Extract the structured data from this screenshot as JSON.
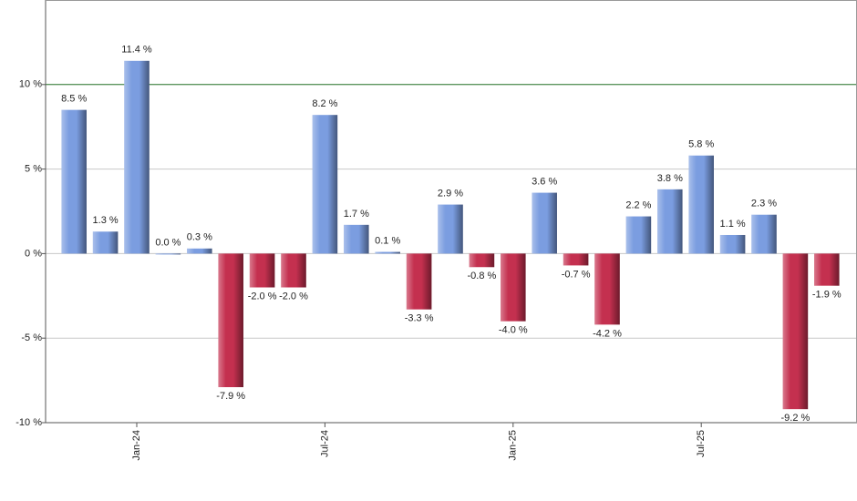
{
  "chart_data": {
    "type": "bar",
    "categories": [
      null,
      null,
      "Jan-24",
      null,
      null,
      null,
      null,
      null,
      "Jul-24",
      null,
      null,
      null,
      null,
      null,
      "Jan-25",
      null,
      null,
      null,
      null,
      null,
      "Jul-25",
      null,
      null,
      null,
      null
    ],
    "values": [
      8.5,
      1.3,
      11.4,
      0.0,
      0.3,
      -7.9,
      -2.0,
      -2.0,
      8.2,
      1.7,
      0.1,
      -3.3,
      2.9,
      -0.8,
      -4.0,
      3.6,
      -0.7,
      -4.2,
      2.2,
      3.8,
      5.8,
      1.1,
      2.3,
      -9.2,
      -1.9
    ],
    "value_labels": [
      "8.5 %",
      "1.3 %",
      "11.4 %",
      "0.0 %",
      "0.3 %",
      "-7.9 %",
      "-2.0 %",
      "-2.0 %",
      "8.2 %",
      "1.7 %",
      "0.1 %",
      "-3.3 %",
      "2.9 %",
      "-0.8 %",
      "-4.0 %",
      "3.6 %",
      "-0.7 %",
      "-4.2 %",
      "2.2 %",
      "3.8 %",
      "5.8 %",
      "1.1 %",
      "2.3 %",
      "-9.2 %",
      "-1.9 %"
    ],
    "positive_color": "#7b9de0",
    "negative_color": "#c4304f",
    "ylim": [
      -10,
      15
    ],
    "yticks": [
      {
        "value": -10,
        "label": "-10 %"
      },
      {
        "value": -5,
        "label": "-5 %"
      },
      {
        "value": 0,
        "label": "0 %"
      },
      {
        "value": 5,
        "label": "5 %"
      },
      {
        "value": 10,
        "label": "10 %"
      }
    ],
    "grid": true,
    "reference_line": 10,
    "reference_line_color": "#2e7d32"
  }
}
